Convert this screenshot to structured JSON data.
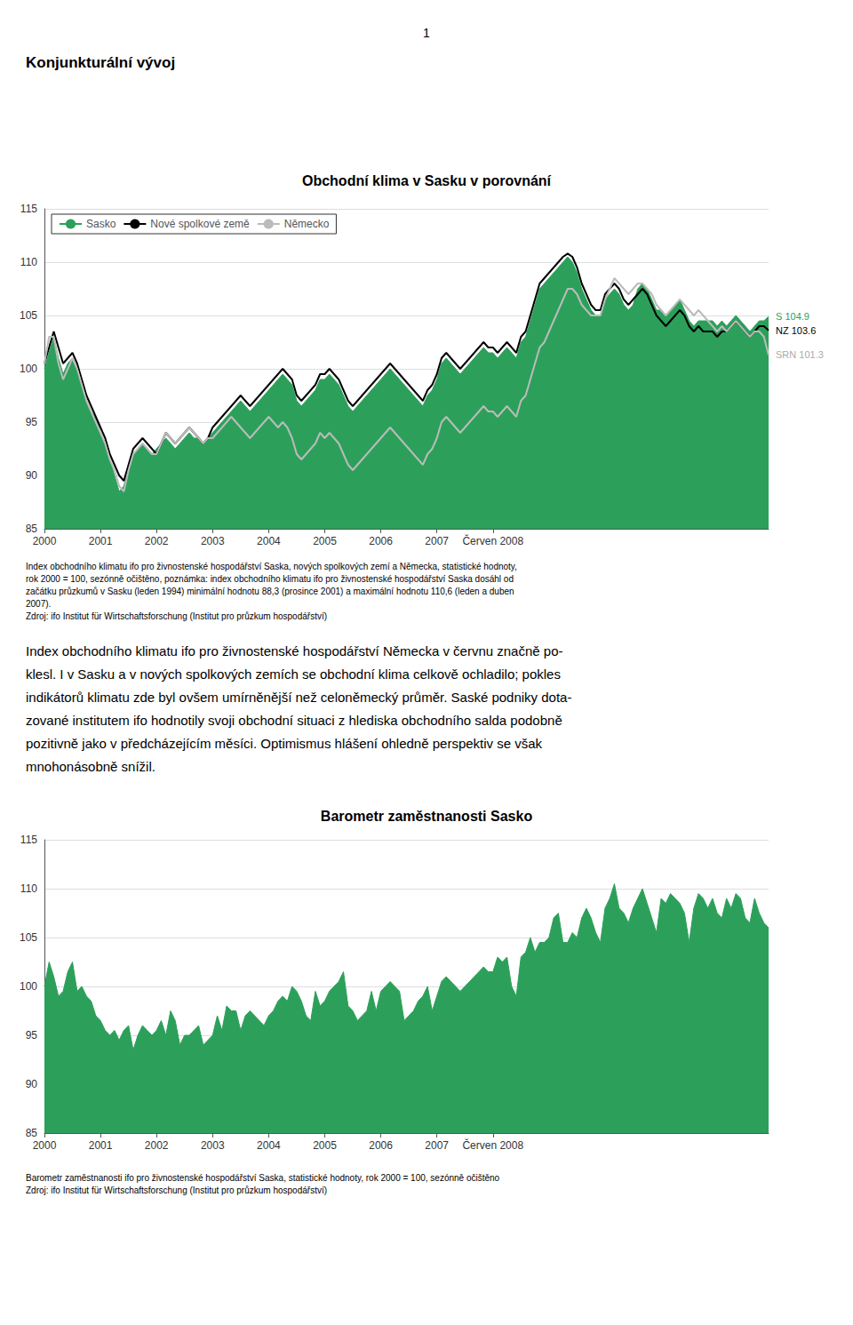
{
  "page_number": "1",
  "title": "Konjunkturální vývoj",
  "body_text": [
    "Index obchodního klimatu ifo pro živnostenské hospodářství Německa v červnu značně po-",
    "klesl. I v Sasku a v nových spolkových zemích se obchodní klima celkově ochladilo; pokles",
    "indikátorů klimatu zde byl ovšem umírněnější než celoněmecký průměr. Saské podniky dota-",
    "zované institutem ifo hodnotily svoji obchodní situaci z hlediska obchodního salda podobně",
    "pozitivně jako v předcházejícím měsíci. Optimismus hlášení ohledně perspektiv se však",
    "mnohonásobně snížil."
  ],
  "chart_data": [
    {
      "type": "line",
      "title": "Obchodní klima v Sasku v porovnání",
      "categories": [
        "2000",
        null,
        null,
        null,
        null,
        null,
        null,
        null,
        null,
        null,
        null,
        null,
        "2001",
        null,
        null,
        null,
        null,
        null,
        null,
        null,
        null,
        null,
        null,
        null,
        "2002",
        null,
        null,
        null,
        null,
        null,
        null,
        null,
        null,
        null,
        null,
        null,
        "2003",
        null,
        null,
        null,
        null,
        null,
        null,
        null,
        null,
        null,
        null,
        null,
        "2004",
        null,
        null,
        null,
        null,
        null,
        null,
        null,
        null,
        null,
        null,
        null,
        "2005",
        null,
        null,
        null,
        null,
        null,
        null,
        null,
        null,
        null,
        null,
        null,
        "2006",
        null,
        null,
        null,
        null,
        null,
        null,
        null,
        null,
        null,
        null,
        null,
        "2007",
        null,
        null,
        null,
        null,
        null,
        null,
        null,
        null,
        null,
        null,
        null,
        "Červen 2008",
        null,
        null,
        null,
        null,
        null,
        null,
        null,
        null,
        null,
        null,
        null,
        null,
        null,
        null,
        null,
        null,
        null,
        null,
        null,
        null,
        null,
        null,
        null,
        null,
        null,
        null,
        null,
        null,
        null,
        null,
        null,
        null,
        null,
        null,
        null,
        null,
        null,
        null,
        null,
        null,
        null,
        null,
        null,
        null,
        null,
        null,
        null,
        null,
        null,
        null,
        null,
        null,
        null,
        null,
        null,
        null,
        null,
        null,
        null
      ],
      "series": [
        {
          "name": "Sasko",
          "type": "area",
          "color": "#2ca05a",
          "values": [
            100.0,
            101.5,
            103.0,
            101.0,
            99.5,
            100.5,
            101.0,
            100.0,
            98.5,
            97.0,
            96.0,
            95.5,
            94.0,
            93.0,
            91.5,
            90.0,
            88.5,
            89.0,
            91.0,
            92.0,
            92.5,
            93.0,
            92.5,
            92.0,
            92.5,
            93.0,
            93.5,
            93.0,
            92.5,
            93.0,
            93.5,
            94.0,
            93.5,
            93.5,
            93.0,
            93.5,
            94.0,
            94.5,
            95.0,
            95.5,
            96.0,
            96.5,
            97.0,
            96.5,
            96.0,
            96.5,
            97.0,
            97.5,
            98.0,
            98.5,
            99.0,
            99.5,
            99.0,
            98.5,
            97.0,
            96.5,
            97.0,
            97.5,
            98.0,
            99.0,
            99.0,
            99.5,
            99.0,
            98.5,
            97.5,
            96.5,
            96.0,
            96.5,
            97.0,
            97.5,
            98.0,
            98.5,
            99.0,
            99.5,
            100.0,
            99.5,
            99.0,
            98.5,
            98.0,
            97.5,
            97.0,
            96.5,
            97.5,
            98.0,
            99.0,
            100.5,
            101.0,
            100.5,
            100.0,
            99.5,
            100.0,
            100.5,
            101.0,
            101.5,
            102.0,
            101.5,
            101.5,
            101.0,
            101.5,
            102.0,
            101.5,
            101.0,
            102.5,
            103.0,
            104.5,
            106.0,
            107.5,
            108.0,
            108.5,
            109.0,
            109.5,
            110.0,
            110.5,
            110.0,
            109.0,
            107.5,
            106.5,
            105.5,
            105.0,
            105.0,
            106.5,
            107.0,
            107.5,
            107.0,
            106.0,
            105.5,
            106.0,
            107.5,
            108.0,
            107.5,
            106.5,
            105.5,
            105.5,
            105.0,
            105.5,
            106.0,
            106.5,
            105.5,
            104.5,
            104.0,
            104.5,
            104.5,
            104.5,
            104.5,
            104.0,
            104.5,
            104.0,
            104.5,
            105.0,
            104.5,
            104.0,
            103.5,
            104.0,
            104.5,
            104.5,
            104.9
          ]
        },
        {
          "name": "Nové spolkové země",
          "type": "line",
          "color": "#000000",
          "values": [
            100.5,
            102.0,
            103.5,
            102.0,
            100.5,
            101.0,
            101.5,
            100.5,
            99.0,
            97.5,
            96.5,
            95.5,
            94.5,
            93.5,
            92.0,
            91.0,
            90.0,
            89.5,
            91.0,
            92.5,
            93.0,
            93.5,
            93.0,
            92.5,
            92.0,
            93.0,
            94.0,
            93.5,
            93.0,
            93.5,
            94.0,
            94.5,
            94.0,
            93.5,
            93.0,
            93.5,
            94.5,
            95.0,
            95.5,
            96.0,
            96.5,
            97.0,
            97.5,
            97.0,
            96.5,
            97.0,
            97.5,
            98.0,
            98.5,
            99.0,
            99.5,
            100.0,
            99.5,
            99.0,
            97.5,
            97.0,
            97.5,
            98.0,
            98.5,
            99.5,
            99.5,
            100.0,
            99.5,
            99.0,
            98.0,
            97.0,
            96.5,
            97.0,
            97.5,
            98.0,
            98.5,
            99.0,
            99.5,
            100.0,
            100.5,
            100.0,
            99.5,
            99.0,
            98.5,
            98.0,
            97.5,
            97.0,
            98.0,
            98.5,
            99.5,
            101.0,
            101.5,
            101.0,
            100.5,
            100.0,
            100.5,
            101.0,
            101.5,
            102.0,
            102.5,
            102.0,
            102.0,
            101.5,
            102.0,
            102.5,
            102.0,
            101.5,
            103.0,
            103.5,
            105.0,
            106.5,
            108.0,
            108.5,
            109.0,
            109.5,
            110.0,
            110.5,
            110.8,
            110.5,
            109.5,
            108.0,
            107.0,
            106.0,
            105.5,
            105.5,
            107.0,
            107.5,
            108.0,
            107.5,
            106.5,
            106.0,
            106.5,
            107.0,
            107.5,
            107.0,
            106.0,
            105.0,
            104.5,
            104.0,
            104.5,
            105.0,
            105.5,
            105.0,
            104.0,
            103.5,
            104.0,
            103.5,
            103.5,
            103.5,
            103.0,
            103.5,
            103.5,
            104.0,
            104.5,
            104.0,
            103.5,
            103.0,
            103.5,
            104.0,
            104.0,
            103.6
          ]
        },
        {
          "name": "Německo",
          "type": "line",
          "color": "#bbbbbb",
          "values": [
            100.5,
            103.0,
            103.0,
            100.5,
            99.0,
            100.0,
            101.0,
            100.0,
            98.5,
            97.0,
            96.0,
            95.0,
            94.0,
            93.0,
            91.5,
            90.5,
            89.0,
            88.5,
            90.5,
            92.0,
            92.5,
            93.0,
            92.5,
            92.0,
            92.0,
            93.0,
            94.0,
            93.5,
            93.0,
            93.5,
            94.0,
            94.5,
            94.0,
            93.5,
            93.0,
            93.5,
            93.5,
            94.0,
            94.5,
            95.0,
            95.5,
            95.0,
            94.5,
            94.0,
            93.5,
            94.0,
            94.5,
            95.0,
            95.5,
            95.0,
            94.5,
            95.0,
            94.5,
            93.5,
            92.0,
            91.5,
            92.0,
            92.5,
            93.0,
            94.0,
            93.5,
            94.0,
            93.5,
            93.0,
            92.0,
            91.0,
            90.5,
            91.0,
            91.5,
            92.0,
            92.5,
            93.0,
            93.5,
            94.0,
            94.5,
            94.0,
            93.5,
            93.0,
            92.5,
            92.0,
            91.5,
            91.0,
            92.0,
            92.5,
            93.5,
            95.0,
            95.5,
            95.0,
            94.5,
            94.0,
            94.5,
            95.0,
            95.5,
            96.0,
            96.5,
            96.0,
            96.0,
            95.5,
            96.0,
            96.5,
            96.0,
            95.5,
            97.0,
            97.5,
            99.0,
            100.5,
            102.0,
            102.5,
            103.5,
            104.5,
            105.5,
            106.5,
            107.5,
            107.5,
            107.0,
            106.0,
            105.5,
            105.0,
            105.0,
            105.0,
            106.5,
            107.5,
            108.5,
            108.0,
            107.5,
            107.0,
            107.5,
            108.0,
            108.0,
            107.5,
            107.0,
            106.0,
            105.5,
            105.0,
            105.5,
            106.0,
            106.5,
            106.0,
            105.5,
            105.0,
            105.5,
            105.0,
            104.5,
            104.0,
            103.5,
            104.0,
            103.5,
            104.0,
            104.5,
            104.0,
            103.5,
            103.0,
            103.5,
            103.5,
            103.0,
            101.3
          ]
        }
      ],
      "ylim": [
        85,
        115
      ],
      "yticks": [
        85,
        90,
        95,
        100,
        105,
        110,
        115
      ],
      "grid": true,
      "legend": "upper left",
      "annotations": [
        {
          "text": "S 104.9",
          "series": "Sasko",
          "color": "#2ca05a"
        },
        {
          "text": "NZ 103.6",
          "series": "Nové spolkové země",
          "color": "#000000"
        },
        {
          "text": "SRN 101.3",
          "series": "Německo",
          "color": "#aaaaaa"
        }
      ],
      "caption": [
        "Index obchodního klimatu ifo pro živnostenské hospodářství Saska, nových spolkových zemí a Německa, statistické hodnoty,",
        "rok 2000 = 100, sezónně očištěno, poznámka: index obchodního klimatu ifo pro živnostenské hospodářství Saska dosáhl od",
        "začátku průzkumů v Sasku (leden 1994) minimální hodnotu 88,3 (prosince 2001) a maximální hodnotu 110,6 (leden a duben",
        "2007).",
        "Zdroj: ifo Institut für Wirtschaftsforschung (Institut pro průzkum hospodářství)"
      ]
    },
    {
      "type": "area",
      "title": "Barometr zaměstnanosti Sasko",
      "categories": [
        "2000",
        null,
        null,
        null,
        null,
        null,
        null,
        null,
        null,
        null,
        null,
        null,
        "2001",
        null,
        null,
        null,
        null,
        null,
        null,
        null,
        null,
        null,
        null,
        null,
        "2002",
        null,
        null,
        null,
        null,
        null,
        null,
        null,
        null,
        null,
        null,
        null,
        "2003",
        null,
        null,
        null,
        null,
        null,
        null,
        null,
        null,
        null,
        null,
        null,
        "2004",
        null,
        null,
        null,
        null,
        null,
        null,
        null,
        null,
        null,
        null,
        null,
        "2005",
        null,
        null,
        null,
        null,
        null,
        null,
        null,
        null,
        null,
        null,
        null,
        "2006",
        null,
        null,
        null,
        null,
        null,
        null,
        null,
        null,
        null,
        null,
        null,
        "2007",
        null,
        null,
        null,
        null,
        null,
        null,
        null,
        null,
        null,
        null,
        null,
        "Červen 2008",
        null,
        null,
        null,
        null,
        null,
        null,
        null,
        null,
        null,
        null,
        null,
        null,
        null,
        null,
        null,
        null,
        null,
        null,
        null,
        null,
        null,
        null,
        null,
        null,
        null,
        null,
        null,
        null,
        null,
        null,
        null,
        null,
        null,
        null,
        null,
        null,
        null,
        null,
        null,
        null,
        null,
        null,
        null,
        null,
        null,
        null,
        null,
        null,
        null,
        null,
        null,
        null,
        null,
        null,
        null,
        null,
        null,
        null,
        null
      ],
      "series": [
        {
          "color": "#2ca05a",
          "values": [
            100.0,
            102.5,
            101.0,
            99.0,
            99.5,
            101.5,
            102.5,
            99.5,
            100.0,
            99.0,
            98.5,
            97.0,
            96.5,
            95.5,
            95.0,
            95.5,
            94.5,
            95.5,
            96.0,
            93.5,
            95.0,
            96.0,
            95.5,
            95.0,
            95.5,
            96.5,
            95.0,
            97.5,
            96.5,
            94.0,
            95.0,
            95.0,
            95.5,
            96.0,
            94.0,
            94.5,
            95.0,
            97.0,
            95.5,
            98.0,
            97.5,
            97.5,
            95.5,
            97.0,
            97.5,
            97.0,
            96.5,
            96.0,
            97.0,
            97.5,
            98.5,
            99.0,
            98.5,
            100.0,
            99.5,
            98.5,
            97.0,
            96.5,
            99.5,
            98.0,
            98.5,
            99.5,
            100.0,
            100.5,
            101.5,
            98.0,
            97.5,
            96.5,
            97.0,
            97.5,
            99.5,
            97.5,
            99.5,
            100.0,
            100.5,
            100.0,
            99.5,
            96.5,
            97.0,
            97.5,
            98.5,
            99.0,
            100.0,
            97.5,
            99.0,
            100.5,
            101.0,
            100.5,
            100.0,
            99.5,
            100.0,
            100.5,
            101.0,
            101.5,
            102.0,
            101.5,
            101.5,
            103.0,
            102.5,
            103.0,
            100.0,
            99.0,
            103.0,
            103.5,
            105.0,
            103.5,
            104.5,
            104.5,
            105.0,
            107.0,
            107.5,
            104.5,
            104.5,
            105.5,
            105.0,
            107.0,
            108.0,
            107.0,
            105.5,
            104.5,
            108.0,
            109.0,
            110.5,
            108.0,
            107.5,
            106.5,
            108.0,
            109.0,
            110.0,
            108.5,
            107.0,
            105.5,
            109.0,
            108.5,
            109.5,
            109.0,
            108.5,
            107.5,
            104.5,
            108.0,
            109.5,
            109.0,
            108.0,
            109.0,
            107.5,
            107.0,
            109.0,
            108.0,
            109.5,
            109.0,
            107.0,
            106.5,
            109.0,
            107.5,
            106.5,
            106.0
          ]
        }
      ],
      "ylim": [
        85,
        115
      ],
      "yticks": [
        85,
        90,
        95,
        100,
        105,
        110,
        115
      ],
      "grid": true,
      "caption": [
        "Barometr zaměstnanosti ifo pro živnostenské hospodářství Saska, statistické hodnoty, rok 2000 = 100, sezónně očištěno",
        "Zdroj: ifo Institut für Wirtschaftsforschung (Institut pro průzkum hospodářství)"
      ]
    }
  ]
}
